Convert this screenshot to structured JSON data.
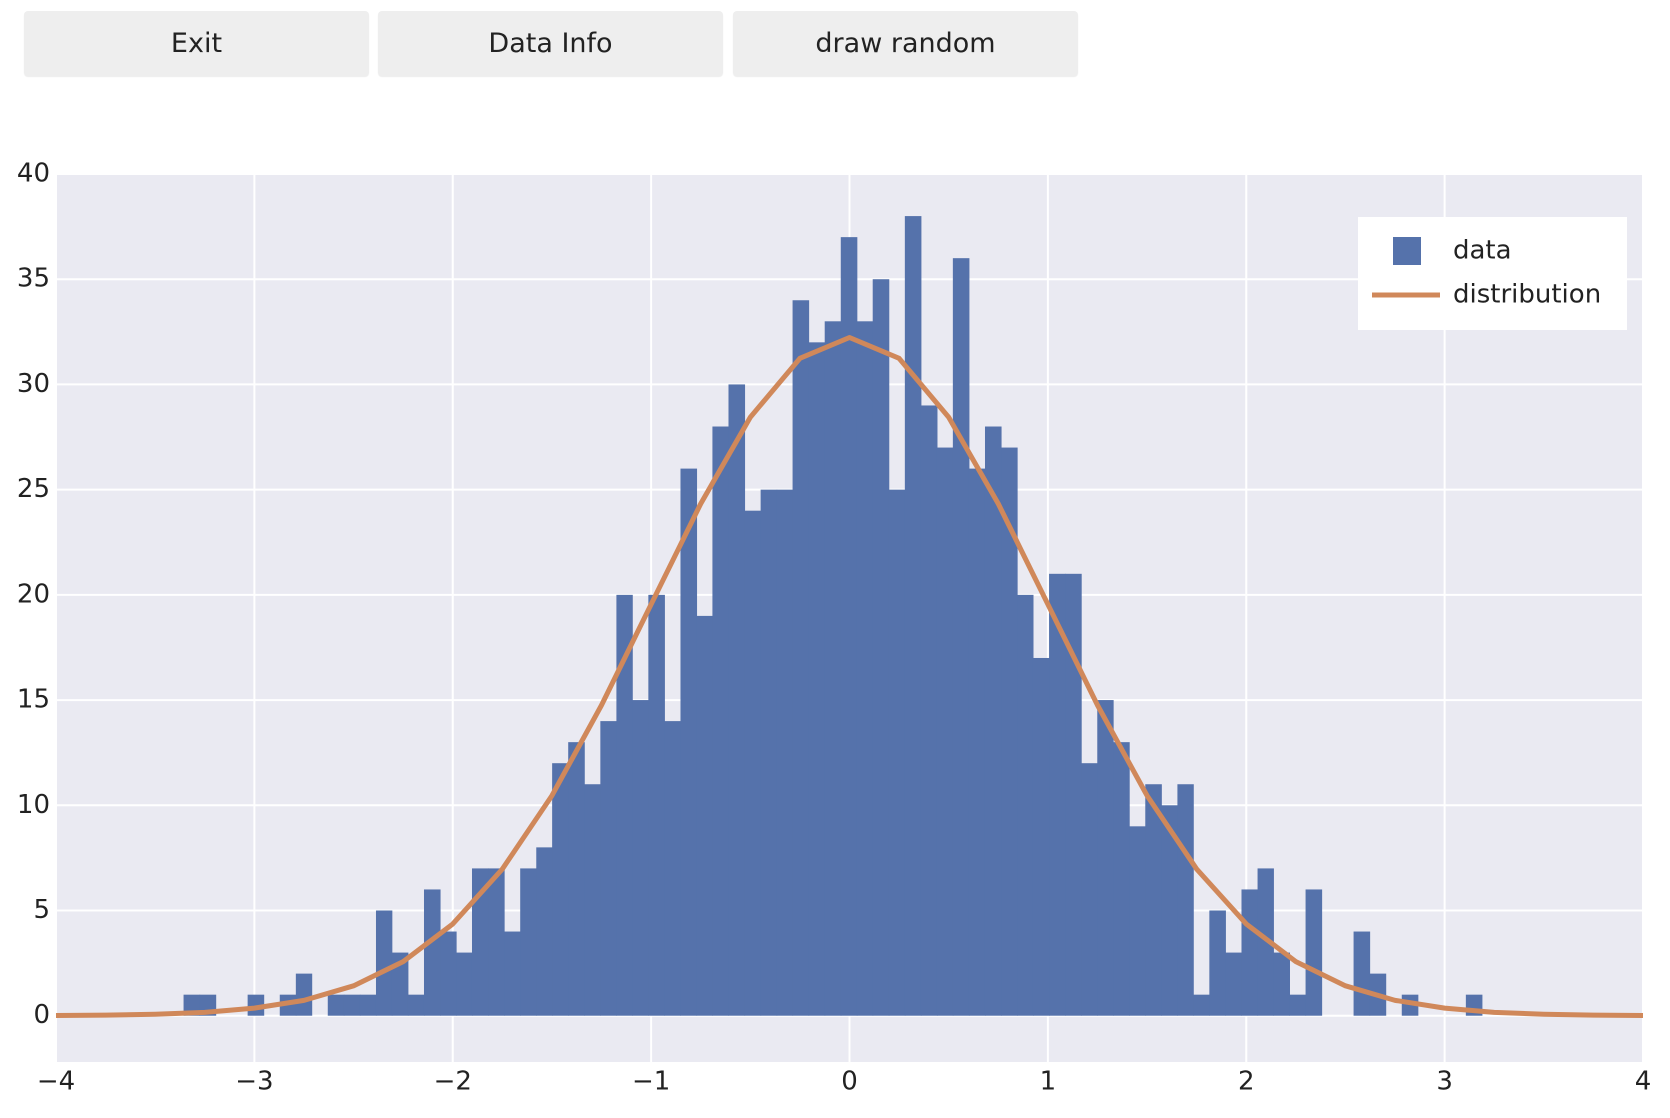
{
  "buttons": [
    "Exit",
    "Data Info",
    "draw random"
  ],
  "chart_data": {
    "type": "histogram",
    "bins": [
      -3.357,
      -3.276,
      -3.195,
      -3.115,
      -3.034,
      -2.953,
      -2.872,
      -2.791,
      -2.711,
      -2.63,
      -2.549,
      -2.468,
      -2.387,
      -2.307,
      -2.226,
      -2.145,
      -2.064,
      -1.983,
      -1.903,
      -1.822,
      -1.741,
      -1.66,
      -1.579,
      -1.499,
      -1.418,
      -1.337,
      -1.256,
      -1.175,
      -1.095,
      -1.014,
      -0.933,
      -0.852,
      -0.771,
      -0.691,
      -0.61,
      -0.529,
      -0.448,
      -0.367,
      -0.287,
      -0.206,
      -0.125,
      -0.044,
      0.037,
      0.117,
      0.198,
      0.279,
      0.36,
      0.441,
      0.521,
      0.602,
      0.683,
      0.764,
      0.845,
      0.925,
      1.006,
      1.087,
      1.168,
      1.249,
      1.329,
      1.41,
      1.491,
      1.572,
      1.653,
      1.733,
      1.814,
      1.895,
      1.976,
      2.057,
      2.137,
      2.218,
      2.299,
      2.38,
      2.461,
      2.541,
      2.622,
      2.703,
      2.784,
      2.865,
      2.945,
      3.026,
      3.107,
      3.188
    ],
    "series": [
      {
        "name": "data",
        "color": "#5572ab",
        "values": [
          1,
          1,
          0,
          0,
          1,
          0,
          1,
          2,
          0,
          1,
          1,
          1,
          5,
          3,
          1,
          6,
          4,
          3,
          7,
          7,
          4,
          7,
          8,
          12,
          13,
          11,
          14,
          20,
          15,
          20,
          14,
          26,
          19,
          28,
          30,
          24,
          25,
          25,
          34,
          32,
          33,
          37,
          33,
          35,
          25,
          38,
          29,
          27,
          36,
          26,
          28,
          27,
          20,
          17,
          21,
          21,
          12,
          15,
          13,
          9,
          11,
          10,
          11,
          1,
          5,
          3,
          6,
          7,
          3,
          1,
          6,
          0,
          0,
          4,
          2,
          0,
          1,
          0,
          0,
          0,
          1
        ]
      },
      {
        "name": "distribution",
        "type": "line",
        "color": "#d0885a",
        "x": [
          -4,
          -3.75,
          -3.5,
          -3.25,
          -3,
          -2.75,
          -2.5,
          -2.25,
          -2,
          -1.75,
          -1.5,
          -1.25,
          -1,
          -0.75,
          -0.5,
          -0.25,
          0,
          0.25,
          0.5,
          0.75,
          1,
          1.25,
          1.5,
          1.75,
          2,
          2.25,
          2.5,
          2.75,
          3,
          3.25,
          3.5,
          3.75,
          4
        ],
        "values": [
          0.01,
          0.03,
          0.07,
          0.16,
          0.36,
          0.73,
          1.42,
          2.57,
          4.36,
          6.97,
          10.46,
          14.76,
          19.55,
          24.33,
          28.44,
          31.24,
          32.23,
          31.24,
          28.44,
          24.33,
          19.55,
          14.76,
          10.46,
          6.97,
          4.36,
          2.57,
          1.42,
          0.73,
          0.36,
          0.16,
          0.07,
          0.03,
          0.01
        ]
      }
    ],
    "xlim": [
      -4,
      4
    ],
    "xticks": [
      {
        "value": -4,
        "label": "−4"
      },
      {
        "value": -3,
        "label": "−3"
      },
      {
        "value": -2,
        "label": "−2"
      },
      {
        "value": -1,
        "label": "−1"
      },
      0,
      1,
      2,
      3,
      4
    ],
    "ylim": [
      -2.2,
      40
    ],
    "yticks": [
      0,
      5,
      10,
      15,
      20,
      25,
      30,
      35,
      40
    ],
    "grid": true,
    "legend": "top-right"
  }
}
